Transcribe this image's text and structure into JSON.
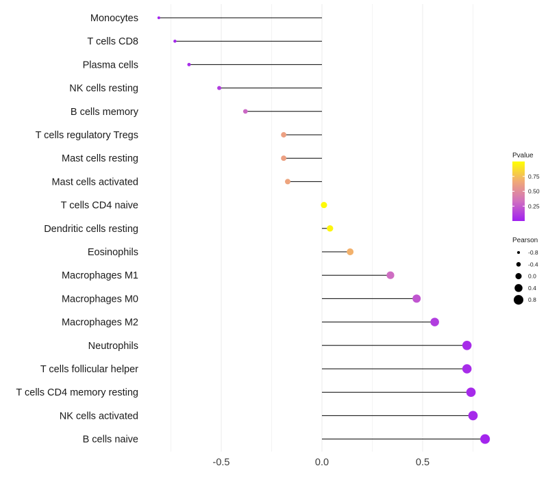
{
  "chart_data": {
    "type": "lollipop",
    "title": "",
    "xlabel": "",
    "ylabel": "",
    "xlim": [
      -0.9,
      0.84
    ],
    "x_ticks": [
      -0.5,
      0.0,
      0.5
    ],
    "x_tick_labels": [
      "-0.5",
      "0.0",
      "0.5"
    ],
    "grid": true,
    "categories": [
      "Monocytes",
      "T cells CD8",
      "Plasma cells",
      "NK cells resting",
      "B cells memory",
      "T cells regulatory  Tregs ",
      "Mast cells resting",
      "Mast cells activated",
      "T cells CD4 naive",
      "Dendritic cells resting",
      "Eosinophils",
      "Macrophages M1",
      "Macrophages M0",
      "Macrophages M2",
      "Neutrophils",
      "T cells follicular helper",
      "T cells CD4 memory resting",
      "NK cells activated",
      "B cells naive"
    ],
    "values": [
      -0.81,
      -0.73,
      -0.66,
      -0.51,
      -0.38,
      -0.19,
      -0.19,
      -0.17,
      0.01,
      0.04,
      0.14,
      0.34,
      0.47,
      0.56,
      0.72,
      0.72,
      0.74,
      0.75,
      0.81
    ],
    "pvalues": [
      0.02,
      0.03,
      0.05,
      0.12,
      0.3,
      0.62,
      0.62,
      0.64,
      0.98,
      0.96,
      0.7,
      0.32,
      0.22,
      0.12,
      0.05,
      0.05,
      0.04,
      0.04,
      0.02
    ],
    "colorbar": {
      "title": "Pvalue",
      "ticks": [
        0.25,
        0.5,
        0.75
      ],
      "tick_labels": [
        "0.25",
        "0.50",
        "0.75"
      ],
      "range": [
        0.0,
        1.0
      ],
      "colors": [
        "#a020f0",
        "#d070c0",
        "#f0a878",
        "#ffff00"
      ]
    },
    "size_legend": {
      "title": "Pearson",
      "values": [
        -0.8,
        -0.4,
        0.0,
        0.4,
        0.8
      ],
      "labels": [
        "-0.8",
        "-0.4",
        "0.0",
        "0.4",
        "0.8"
      ]
    },
    "line_color": "#000000",
    "grid_color": "#ebebeb"
  }
}
